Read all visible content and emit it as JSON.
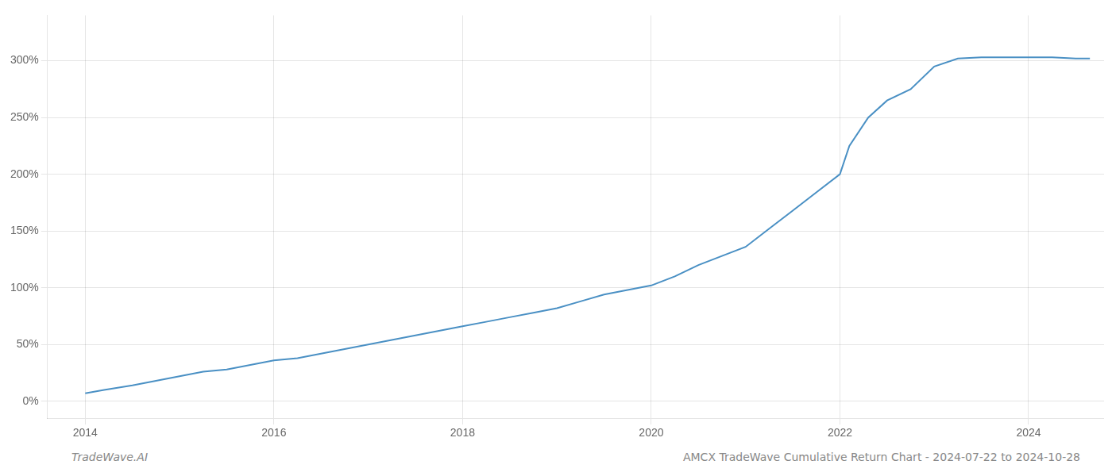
{
  "chart_data": {
    "type": "line",
    "title": "AMCX TradeWave Cumulative Return Chart - 2024-07-22 to 2024-10-28",
    "annotations": [
      "TradeWave.AI"
    ],
    "color": "#4a90c4",
    "grid": true,
    "xlim": [
      2013.6,
      2024.8
    ],
    "ylim": [
      -15,
      340
    ],
    "xticks": [
      2014,
      2016,
      2018,
      2020,
      2022,
      2024
    ],
    "yticks": [
      {
        "value": 0,
        "label": "0%"
      },
      {
        "value": 50,
        "label": "50%"
      },
      {
        "value": 100,
        "label": "100%"
      },
      {
        "value": 150,
        "label": "150%"
      },
      {
        "value": 200,
        "label": "200%"
      },
      {
        "value": 250,
        "label": "250%"
      },
      {
        "value": 300,
        "label": "300%"
      }
    ],
    "x": [
      2014.0,
      2014.2,
      2014.5,
      2014.75,
      2015.0,
      2015.25,
      2015.5,
      2015.75,
      2016.0,
      2016.25,
      2016.5,
      2016.75,
      2017.0,
      2017.25,
      2017.5,
      2017.75,
      2018.0,
      2018.25,
      2018.5,
      2018.75,
      2019.0,
      2019.25,
      2019.5,
      2019.75,
      2020.0,
      2020.25,
      2020.5,
      2020.75,
      2021.0,
      2021.25,
      2021.5,
      2021.75,
      2022.0,
      2022.1,
      2022.3,
      2022.5,
      2022.75,
      2023.0,
      2023.25,
      2023.5,
      2023.75,
      2024.0,
      2024.25,
      2024.5,
      2024.65
    ],
    "values": [
      7,
      10,
      14,
      18,
      22,
      26,
      28,
      32,
      36,
      38,
      42,
      46,
      50,
      54,
      58,
      62,
      66,
      70,
      74,
      78,
      82,
      88,
      94,
      98,
      102,
      110,
      120,
      128,
      136,
      152,
      168,
      184,
      200,
      225,
      250,
      265,
      275,
      295,
      302,
      303,
      303,
      303,
      303,
      302,
      302
    ]
  }
}
